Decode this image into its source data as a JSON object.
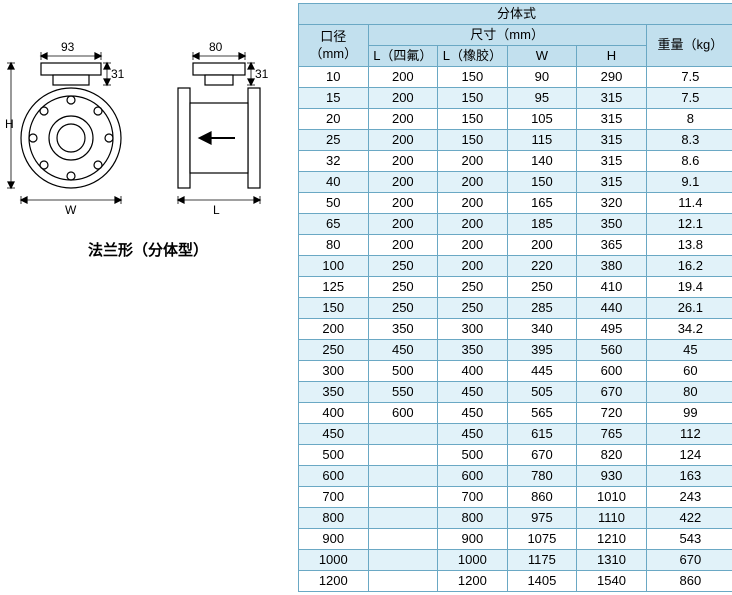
{
  "diagram": {
    "dim_top1": "93",
    "dim_right1": "31",
    "dim_top2": "80",
    "dim_right2": "31",
    "dim_h": "H",
    "dim_w": "W",
    "dim_l": "L",
    "caption": "法兰形（分体型）"
  },
  "table": {
    "title": "分体式",
    "head_diameter": "口径（mm）",
    "head_dim": "尺寸（mm）",
    "head_weight": "重量（kg）",
    "head_l1": "L（四氟）",
    "head_l2": "L（橡胶）",
    "head_w": "W",
    "head_h": "H",
    "rows": [
      {
        "d": "10",
        "l1": "200",
        "l2": "150",
        "w": "90",
        "h": "290",
        "wt": "7.5"
      },
      {
        "d": "15",
        "l1": "200",
        "l2": "150",
        "w": "95",
        "h": "315",
        "wt": "7.5"
      },
      {
        "d": "20",
        "l1": "200",
        "l2": "150",
        "w": "105",
        "h": "315",
        "wt": "8"
      },
      {
        "d": "25",
        "l1": "200",
        "l2": "150",
        "w": "115",
        "h": "315",
        "wt": "8.3"
      },
      {
        "d": "32",
        "l1": "200",
        "l2": "200",
        "w": "140",
        "h": "315",
        "wt": "8.6"
      },
      {
        "d": "40",
        "l1": "200",
        "l2": "200",
        "w": "150",
        "h": "315",
        "wt": "9.1"
      },
      {
        "d": "50",
        "l1": "200",
        "l2": "200",
        "w": "165",
        "h": "320",
        "wt": "11.4"
      },
      {
        "d": "65",
        "l1": "200",
        "l2": "200",
        "w": "185",
        "h": "350",
        "wt": "12.1"
      },
      {
        "d": "80",
        "l1": "200",
        "l2": "200",
        "w": "200",
        "h": "365",
        "wt": "13.8"
      },
      {
        "d": "100",
        "l1": "250",
        "l2": "200",
        "w": "220",
        "h": "380",
        "wt": "16.2"
      },
      {
        "d": "125",
        "l1": "250",
        "l2": "250",
        "w": "250",
        "h": "410",
        "wt": "19.4"
      },
      {
        "d": "150",
        "l1": "250",
        "l2": "250",
        "w": "285",
        "h": "440",
        "wt": "26.1"
      },
      {
        "d": "200",
        "l1": "350",
        "l2": "300",
        "w": "340",
        "h": "495",
        "wt": "34.2"
      },
      {
        "d": "250",
        "l1": "450",
        "l2": "350",
        "w": "395",
        "h": "560",
        "wt": "45"
      },
      {
        "d": "300",
        "l1": "500",
        "l2": "400",
        "w": "445",
        "h": "600",
        "wt": "60"
      },
      {
        "d": "350",
        "l1": "550",
        "l2": "450",
        "w": "505",
        "h": "670",
        "wt": "80"
      },
      {
        "d": "400",
        "l1": "600",
        "l2": "450",
        "w": "565",
        "h": "720",
        "wt": "99"
      },
      {
        "d": "450",
        "l1": "",
        "l2": "450",
        "w": "615",
        "h": "765",
        "wt": "112"
      },
      {
        "d": "500",
        "l1": "",
        "l2": "500",
        "w": "670",
        "h": "820",
        "wt": "124"
      },
      {
        "d": "600",
        "l1": "",
        "l2": "600",
        "w": "780",
        "h": "930",
        "wt": "163"
      },
      {
        "d": "700",
        "l1": "",
        "l2": "700",
        "w": "860",
        "h": "1010",
        "wt": "243"
      },
      {
        "d": "800",
        "l1": "",
        "l2": "800",
        "w": "975",
        "h": "1110",
        "wt": "422"
      },
      {
        "d": "900",
        "l1": "",
        "l2": "900",
        "w": "1075",
        "h": "1210",
        "wt": "543"
      },
      {
        "d": "1000",
        "l1": "",
        "l2": "1000",
        "w": "1175",
        "h": "1310",
        "wt": "670"
      },
      {
        "d": "1200",
        "l1": "",
        "l2": "1200",
        "w": "1405",
        "h": "1540",
        "wt": "860"
      }
    ]
  }
}
